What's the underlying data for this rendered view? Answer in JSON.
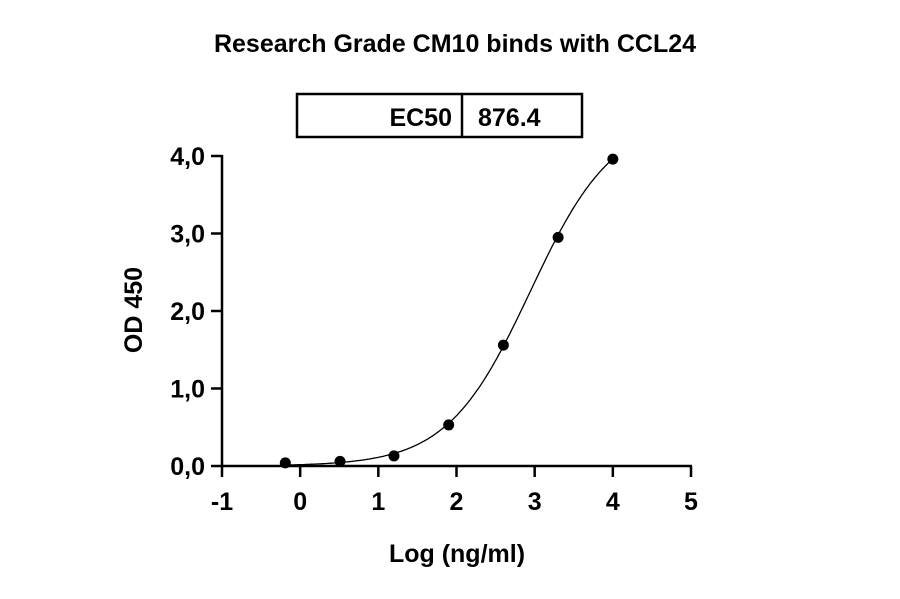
{
  "chart_data": {
    "type": "scatter",
    "title": "Research Grade CM10 binds with CCL24",
    "xlabel": "Log (ng/ml)",
    "ylabel": "OD 450",
    "xlim": [
      -1,
      5
    ],
    "ylim": [
      0,
      4
    ],
    "x_ticks": [
      "-1",
      "0",
      "1",
      "2",
      "3",
      "4",
      "5"
    ],
    "y_ticks": [
      "0,0",
      "1,0",
      "2,0",
      "3,0",
      "4,0"
    ],
    "grid": false,
    "fit": "4PL sigmoidal curve",
    "ec50_table": {
      "label": "EC50",
      "value": "876.4"
    },
    "series": [
      {
        "x": [
          -0.19,
          0.51,
          1.2,
          1.9,
          2.6,
          3.3,
          4.0
        ],
        "y": [
          0.04,
          0.06,
          0.13,
          0.53,
          1.56,
          2.95,
          3.96
        ]
      }
    ],
    "colors": {
      "marker": "#000000",
      "line": "#000000"
    }
  }
}
